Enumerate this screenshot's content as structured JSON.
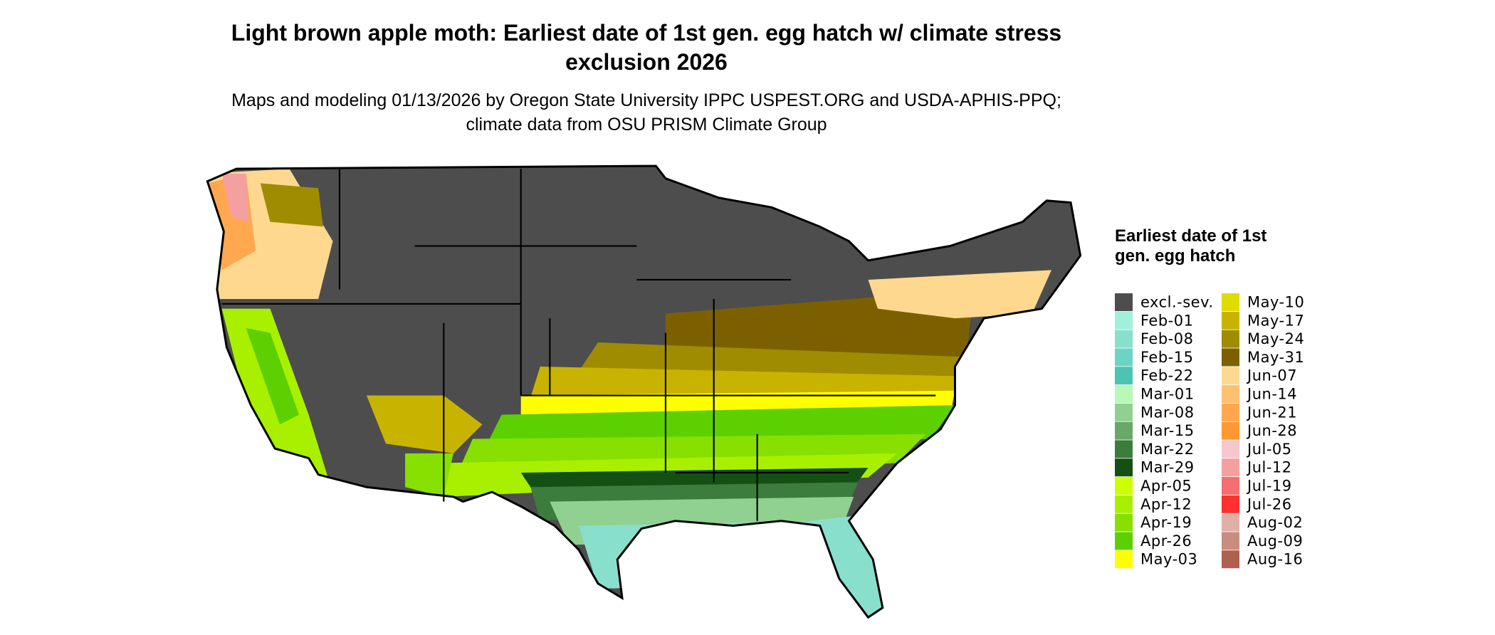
{
  "title": "Light brown apple moth: Earliest date of 1st gen. egg hatch w/ climate stress exclusion 2026",
  "subtitle": "Maps and modeling 01/13/2026 by Oregon State University IPPC USPEST.ORG and USDA-APHIS-PPQ; climate data from OSU PRISM Climate Group",
  "legend": {
    "title": "Earliest date of 1st gen. egg hatch",
    "items": [
      {
        "label": "excl.-sev.",
        "color": "#4d4d4d"
      },
      {
        "label": "Feb-01",
        "color": "#a0f0dc"
      },
      {
        "label": "Feb-08",
        "color": "#88e0cc"
      },
      {
        "label": "Feb-15",
        "color": "#6cd4c4"
      },
      {
        "label": "Feb-22",
        "color": "#4cc4b4"
      },
      {
        "label": "Mar-01",
        "color": "#b8f8b8"
      },
      {
        "label": "Mar-08",
        "color": "#90d090"
      },
      {
        "label": "Mar-15",
        "color": "#68a868"
      },
      {
        "label": "Mar-22",
        "color": "#3c7c3c"
      },
      {
        "label": "Mar-29",
        "color": "#145014"
      },
      {
        "label": "Apr-05",
        "color": "#ccff00"
      },
      {
        "label": "Apr-12",
        "color": "#a8f000"
      },
      {
        "label": "Apr-19",
        "color": "#88e000"
      },
      {
        "label": "Apr-26",
        "color": "#5cd000"
      },
      {
        "label": "May-03",
        "color": "#ffff00"
      },
      {
        "label": "May-10",
        "color": "#e0dc00"
      },
      {
        "label": "May-17",
        "color": "#c8b400"
      },
      {
        "label": "May-24",
        "color": "#a08c00"
      },
      {
        "label": "May-31",
        "color": "#7c6000"
      },
      {
        "label": "Jun-07",
        "color": "#ffd890"
      },
      {
        "label": "Jun-14",
        "color": "#ffc070"
      },
      {
        "label": "Jun-21",
        "color": "#ffa850"
      },
      {
        "label": "Jun-28",
        "color": "#ff9830"
      },
      {
        "label": "Jul-05",
        "color": "#f4c8cc"
      },
      {
        "label": "Jul-12",
        "color": "#f4a0a0"
      },
      {
        "label": "Jul-19",
        "color": "#f47070"
      },
      {
        "label": "Jul-26",
        "color": "#ff3030"
      },
      {
        "label": "Aug-02",
        "color": "#e0b0a8"
      },
      {
        "label": "Aug-09",
        "color": "#c88c80"
      },
      {
        "label": "Aug-16",
        "color": "#b06050"
      }
    ]
  }
}
